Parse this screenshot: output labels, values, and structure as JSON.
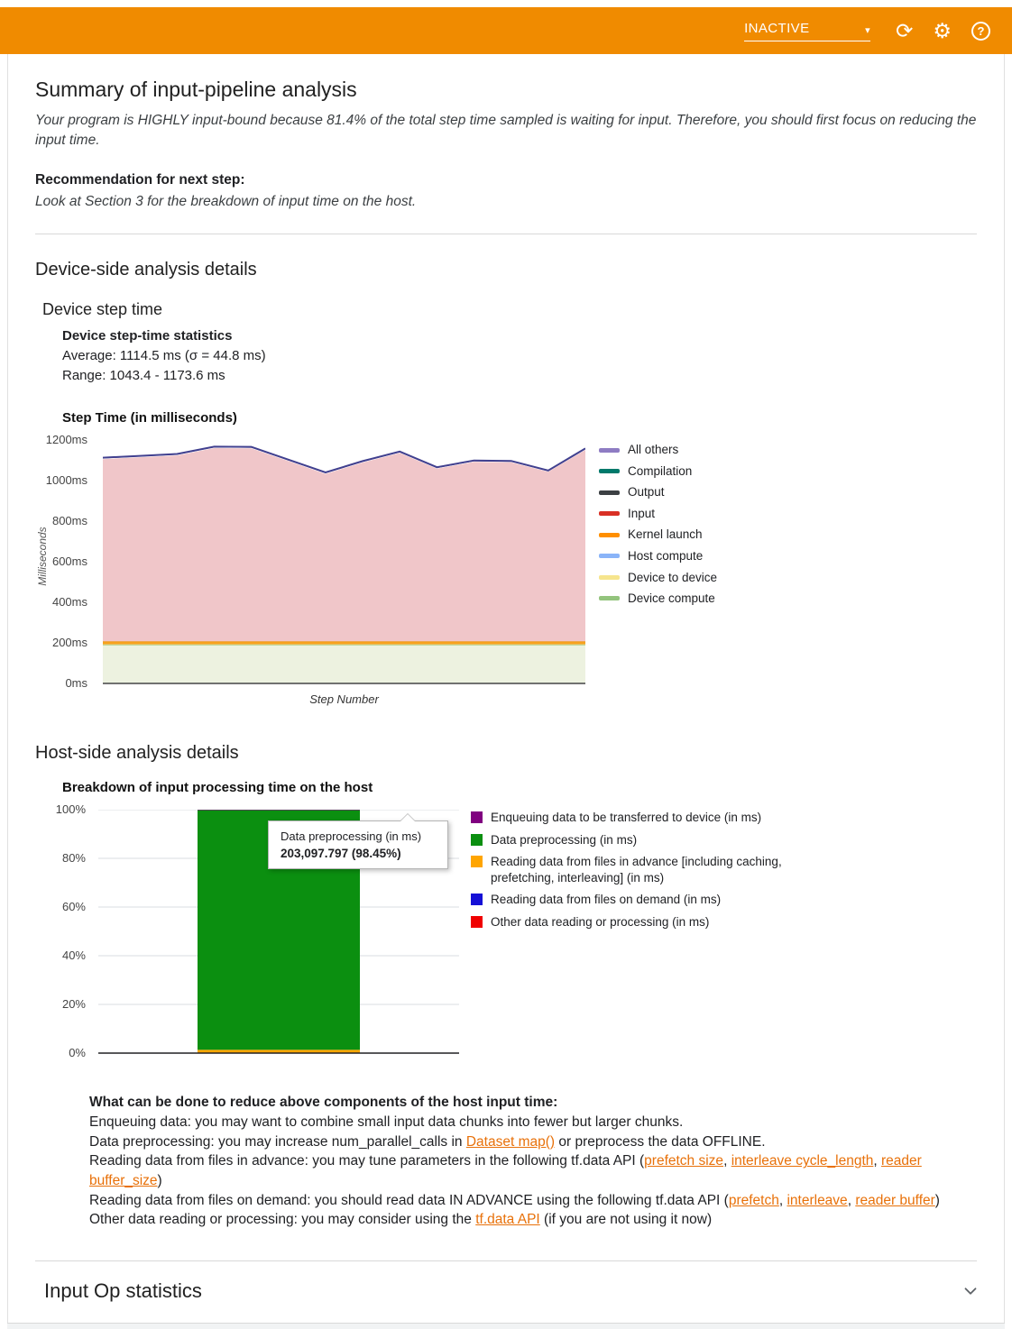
{
  "colors": {
    "header_bg": "#f08b00",
    "link": "#e8710a",
    "divider": "#d9d9d9"
  },
  "header": {
    "status_label": "INACTIVE"
  },
  "summary": {
    "title": "Summary of input-pipeline analysis",
    "conclusion": "Your program is HIGHLY input-bound because 81.4% of the total step time sampled is waiting for input. Therefore, you should first focus on reducing the input time.",
    "recommendation_label": "Recommendation for next step:",
    "recommendation_text": "Look at Section 3 for the breakdown of input time on the host."
  },
  "device_section": {
    "title": "Device-side analysis details",
    "subtitle": "Device step time",
    "stats_heading": "Device step-time statistics",
    "average_line": "Average: 1114.5 ms (σ = 44.8 ms)",
    "range_line": "Range: 1043.4 - 1173.6 ms",
    "chart_heading": "Step Time (in milliseconds)"
  },
  "host_section": {
    "title": "Host-side analysis details",
    "chart_heading": "Breakdown of input processing time on the host"
  },
  "advice": {
    "title": "What can be done to reduce above components of the host input time:",
    "lines": [
      [
        {
          "t": "Enqueuing data: you may want to combine small input data chunks into fewer but larger chunks."
        }
      ],
      [
        {
          "t": "Data preprocessing: you may increase num_parallel_calls in "
        },
        {
          "t": "Dataset map()",
          "link": true
        },
        {
          "t": " or preprocess the data OFFLINE."
        }
      ],
      [
        {
          "t": "Reading data from files in advance: you may tune parameters in the following tf.data API ("
        },
        {
          "t": "prefetch size",
          "link": true
        },
        {
          "t": ", "
        },
        {
          "t": "interleave cycle_length",
          "link": true
        },
        {
          "t": ", "
        },
        {
          "t": "reader buffer_size",
          "link": true
        },
        {
          "t": ")"
        }
      ],
      [
        {
          "t": "Reading data from files on demand: you should read data IN ADVANCE using the following tf.data API ("
        },
        {
          "t": "prefetch",
          "link": true
        },
        {
          "t": ", "
        },
        {
          "t": "interleave",
          "link": true
        },
        {
          "t": ", "
        },
        {
          "t": "reader buffer",
          "link": true
        },
        {
          "t": ")"
        }
      ],
      [
        {
          "t": "Other data reading or processing: you may consider using the "
        },
        {
          "t": "tf.data API",
          "link": true
        },
        {
          "t": " (if you are not using it now)"
        }
      ]
    ]
  },
  "input_op": {
    "title": "Input Op statistics"
  },
  "chart_data": [
    {
      "type": "area",
      "title": "Step Time (in milliseconds)",
      "xlabel": "Step Number",
      "ylabel": "Milliseconds",
      "ylim": [
        0,
        1200
      ],
      "yticks": [
        "0ms",
        "200ms",
        "400ms",
        "600ms",
        "800ms",
        "1000ms",
        "1200ms"
      ],
      "total_step_time_ms": [
        1113,
        1122,
        1131,
        1167,
        1166,
        1103,
        1040,
        1096,
        1143,
        1066,
        1099,
        1097,
        1050,
        1158
      ],
      "series": [
        {
          "name": "Device compute",
          "fill": "#edf2e0",
          "line": "#b7d38f",
          "lw": 1.2,
          "values": [
            190,
            190,
            190,
            190,
            190,
            190,
            190,
            190,
            190,
            190,
            190,
            190,
            190,
            190
          ]
        },
        {
          "name": "Device to device",
          "fill": null,
          "line": null,
          "values": [
            1,
            1,
            1,
            1,
            1,
            1,
            1,
            1,
            1,
            1,
            1,
            1,
            1,
            1
          ]
        },
        {
          "name": "Host compute",
          "fill": null,
          "line": null,
          "values": [
            2,
            2,
            2,
            2,
            2,
            2,
            2,
            2,
            2,
            2,
            2,
            2,
            2,
            2
          ]
        },
        {
          "name": "Kernel launch",
          "fill": "#f6a21d",
          "line": "#ef8f00",
          "lw": 1,
          "values": [
            14,
            14,
            14,
            14,
            14,
            14,
            14,
            14,
            14,
            14,
            14,
            14,
            14,
            14
          ]
        },
        {
          "name": "Input",
          "fill": "#f0c6c9",
          "line": null,
          "values": [
            899,
            908,
            917,
            953,
            952,
            889,
            826,
            882,
            929,
            852,
            885,
            883,
            836,
            944
          ]
        },
        {
          "name": "Output",
          "fill": null,
          "line": null,
          "values": [
            2,
            2,
            2,
            2,
            2,
            2,
            2,
            2,
            2,
            2,
            2,
            2,
            2,
            2
          ]
        },
        {
          "name": "Compilation",
          "fill": null,
          "line": null,
          "values": [
            1,
            1,
            1,
            1,
            1,
            1,
            1,
            1,
            1,
            1,
            1,
            1,
            1,
            1
          ]
        },
        {
          "name": "All others",
          "fill": "#41408f",
          "line": "#41408f",
          "lw": 2,
          "values": [
            4,
            4,
            4,
            4,
            4,
            4,
            4,
            4,
            4,
            4,
            4,
            4,
            4,
            4
          ]
        }
      ],
      "legend": [
        {
          "label": "All others",
          "color": "#8e7cc3"
        },
        {
          "label": "Compilation",
          "color": "#00796b"
        },
        {
          "label": "Output",
          "color": "#3c4043"
        },
        {
          "label": "Input",
          "color": "#d93025"
        },
        {
          "label": "Kernel launch",
          "color": "#ff8f00"
        },
        {
          "label": "Host compute",
          "color": "#8ab4f8"
        },
        {
          "label": "Device to device",
          "color": "#f6e58d"
        },
        {
          "label": "Device compute",
          "color": "#93c47d"
        }
      ]
    },
    {
      "type": "bar",
      "stacked_percent": true,
      "title": "Breakdown of input processing time on the host",
      "yticks": [
        "0%",
        "20%",
        "40%",
        "60%",
        "80%",
        "100%"
      ],
      "series": [
        {
          "name": "Enqueuing data to be transferred to device (in ms)",
          "color": "#800080",
          "percent": 0.2
        },
        {
          "name": "Data preprocessing (in ms)",
          "color": "#0b8f10",
          "percent": 98.45,
          "value_ms": "203,097.797"
        },
        {
          "name": "Reading data from files in advance [including caching, prefetching, interleaving] (in ms)",
          "color": "#ffa500",
          "percent": 1.25
        },
        {
          "name": "Reading data from files on demand (in ms)",
          "color": "#1510d6",
          "percent": 0.05
        },
        {
          "name": "Other data reading or processing (in ms)",
          "color": "#f00000",
          "percent": 0.05
        }
      ],
      "tooltip": {
        "title": "Data preprocessing (in ms)",
        "value": "203,097.797 (98.45%)"
      }
    }
  ]
}
